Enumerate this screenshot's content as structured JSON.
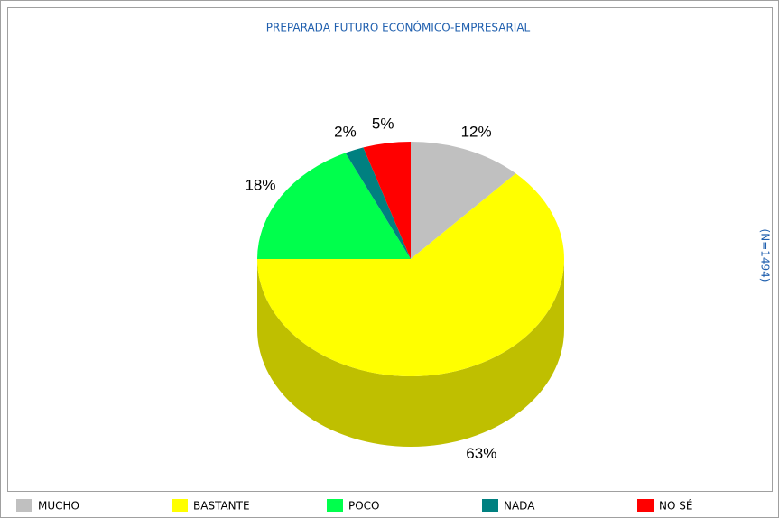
{
  "chart_data": {
    "type": "pie",
    "title": "PREPARADA FUTURO ECONÓMICO-EMPRESARIAL",
    "annotation": "(N=1494)",
    "categories": [
      "MUCHO",
      "BASTANTE",
      "POCO",
      "NADA",
      "NO SÉ"
    ],
    "values": [
      12,
      63,
      18,
      2,
      5
    ],
    "value_labels": [
      "12%",
      "63%",
      "18%",
      "2%",
      "5%"
    ],
    "colors": [
      "#c0c0c0",
      "#ffff00",
      "#00ff4c",
      "#008080",
      "#ff0000"
    ]
  }
}
